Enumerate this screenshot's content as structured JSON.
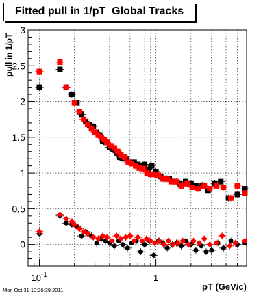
{
  "title": "Fitted pull in 1/pT  Global Tracks",
  "timestamp": "Mon Oct 31 10:26:39 2011",
  "chart_data": {
    "type": "scatter",
    "title": "Fitted pull in 1/pT  Global Tracks",
    "xlabel": "pT (GeV/c)",
    "ylabel": "pull in 1/pT",
    "xscale": "log",
    "xlim": [
      0.08,
      6.0
    ],
    "ylim": [
      -0.3,
      3.0
    ],
    "xticklabels": [
      "10^-1",
      "1"
    ],
    "yticks": [
      0,
      0.5,
      1,
      1.5,
      2,
      2.5,
      3
    ],
    "yticklabels": [
      "0",
      "0.5",
      "1",
      "1.5",
      "2",
      "2.5",
      "3"
    ],
    "grid": true,
    "series": [
      {
        "color": "#000000",
        "marker": "square",
        "x": [
          0.1,
          0.15,
          0.17,
          0.19,
          0.21,
          0.23,
          0.25,
          0.27,
          0.29,
          0.31,
          0.33,
          0.35,
          0.37,
          0.4,
          0.43,
          0.46,
          0.49,
          0.52,
          0.56,
          0.6,
          0.65,
          0.7,
          0.75,
          0.8,
          0.86,
          0.92,
          1.0,
          1.1,
          1.2,
          1.3,
          1.45,
          1.6,
          1.8,
          2.0,
          2.2,
          2.5,
          2.8,
          3.2,
          3.6,
          4.2,
          5.0,
          5.8
        ],
        "y": [
          2.2,
          2.45,
          2.2,
          2.1,
          1.98,
          1.82,
          1.72,
          1.67,
          1.65,
          1.57,
          1.53,
          1.45,
          1.43,
          1.36,
          1.33,
          1.28,
          1.22,
          1.2,
          1.2,
          1.15,
          1.15,
          1.12,
          1.1,
          1.12,
          1.05,
          1.1,
          1.02,
          0.95,
          0.92,
          0.92,
          0.88,
          0.85,
          0.88,
          0.85,
          0.82,
          0.83,
          0.75,
          0.85,
          0.88,
          0.65,
          0.7,
          0.78
        ]
      },
      {
        "color": "#ff0000",
        "marker": "square",
        "x": [
          0.1,
          0.15,
          0.17,
          0.2,
          0.22,
          0.24,
          0.26,
          0.28,
          0.3,
          0.32,
          0.34,
          0.36,
          0.38,
          0.41,
          0.44,
          0.47,
          0.5,
          0.54,
          0.58,
          0.62,
          0.67,
          0.72,
          0.78,
          0.84,
          0.9,
          0.97,
          1.05,
          1.15,
          1.25,
          1.35,
          1.5,
          1.65,
          1.85,
          2.05,
          2.3,
          2.6,
          2.9,
          3.3,
          3.8,
          4.4,
          5.0,
          5.8
        ],
        "y": [
          2.42,
          2.55,
          2.2,
          1.98,
          1.86,
          1.75,
          1.68,
          1.62,
          1.57,
          1.53,
          1.5,
          1.47,
          1.43,
          1.38,
          1.35,
          1.3,
          1.25,
          1.22,
          1.15,
          1.13,
          1.1,
          1.07,
          1.06,
          1.0,
          0.98,
          0.98,
          0.97,
          0.92,
          0.92,
          0.88,
          0.88,
          0.82,
          0.85,
          0.8,
          0.78,
          0.82,
          0.78,
          0.82,
          0.8,
          0.65,
          0.82,
          0.72
        ]
      },
      {
        "color": "#000000",
        "marker": "circle",
        "x": [
          0.1,
          0.15,
          0.17,
          0.19,
          0.21,
          0.23,
          0.25,
          0.28,
          0.31,
          0.34,
          0.37,
          0.4,
          0.44,
          0.48,
          0.52,
          0.57,
          0.62,
          0.68,
          0.74,
          0.8,
          0.88,
          0.96,
          1.05,
          1.15,
          1.25,
          1.38,
          1.5,
          1.65,
          1.8,
          2.0,
          2.2,
          2.45,
          2.7,
          3.0,
          3.4,
          3.8,
          4.4,
          5.0,
          5.8
        ],
        "y": [
          0.15,
          0.4,
          0.3,
          0.28,
          0.25,
          0.12,
          0.18,
          0.12,
          0.02,
          0.08,
          0.05,
          0.02,
          -0.02,
          0.05,
          0.0,
          -0.05,
          0.02,
          0.05,
          -0.1,
          0.0,
          0.05,
          -0.15,
          0.05,
          0.02,
          -0.05,
          0.0,
          0.02,
          -0.02,
          0.05,
          0.0,
          -0.08,
          -0.02,
          -0.1,
          -0.08,
          0.02,
          -0.05,
          0.05,
          0.0,
          0.02
        ]
      },
      {
        "color": "#ff0000",
        "marker": "diamond",
        "x": [
          0.1,
          0.15,
          0.17,
          0.19,
          0.2,
          0.22,
          0.24,
          0.26,
          0.29,
          0.32,
          0.35,
          0.38,
          0.42,
          0.46,
          0.5,
          0.55,
          0.6,
          0.65,
          0.7,
          0.76,
          0.83,
          0.9,
          0.98,
          1.07,
          1.17,
          1.28,
          1.4,
          1.55,
          1.7,
          1.9,
          2.1,
          2.35,
          2.6,
          2.9,
          3.3,
          3.7,
          4.3,
          4.8,
          5.8
        ],
        "y": [
          0.18,
          0.42,
          0.36,
          0.32,
          0.28,
          0.22,
          0.18,
          0.15,
          0.1,
          0.08,
          0.12,
          0.1,
          0.05,
          0.12,
          0.08,
          0.1,
          0.12,
          0.05,
          0.1,
          0.05,
          0.08,
          0.05,
          0.02,
          0.05,
          0.0,
          0.05,
          0.0,
          0.02,
          0.05,
          0.0,
          0.05,
          0.02,
          0.08,
          0.0,
          0.02,
          0.12,
          -0.02,
          0.02,
          0.05
        ]
      }
    ]
  }
}
